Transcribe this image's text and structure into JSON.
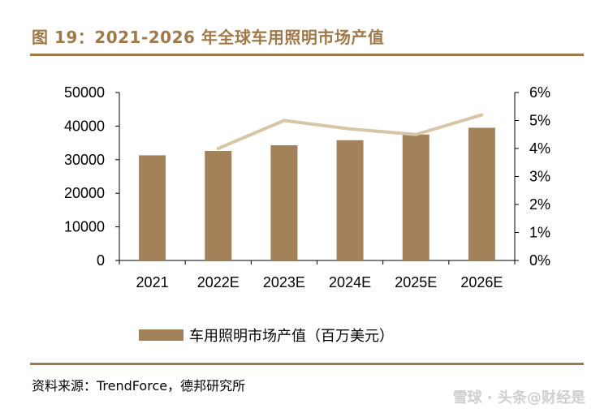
{
  "figure": {
    "title": "图 19：2021-2026 年全球车用照明市场产值",
    "source": "资料来源：TrendForce，德邦研究所",
    "watermark": "雪球 · 头条@财经是"
  },
  "colors": {
    "bar": "#A3825A",
    "line": "#D7C6A6",
    "accent": "#A0794A"
  },
  "chart_data": {
    "type": "bar",
    "categories": [
      "2021",
      "2022E",
      "2023E",
      "2024E",
      "2025E",
      "2026E"
    ],
    "series": [
      {
        "name": "车用照明市场产值（百万美元）",
        "type": "bar",
        "axis": "left",
        "values": [
          31300,
          32600,
          34300,
          35800,
          37500,
          39500
        ]
      },
      {
        "name": "",
        "type": "line",
        "axis": "right",
        "values": [
          null,
          4.0,
          5.0,
          4.7,
          4.5,
          5.2
        ]
      }
    ],
    "y_left": {
      "min": 0,
      "max": 50000,
      "ticks": [
        "0",
        "10000",
        "20000",
        "30000",
        "40000",
        "50000"
      ]
    },
    "y_right": {
      "min": 0,
      "max": 6,
      "ticks": [
        "0%",
        "1%",
        "2%",
        "3%",
        "4%",
        "5%",
        "6%"
      ]
    },
    "legend_position": "bottom",
    "grid": false
  }
}
